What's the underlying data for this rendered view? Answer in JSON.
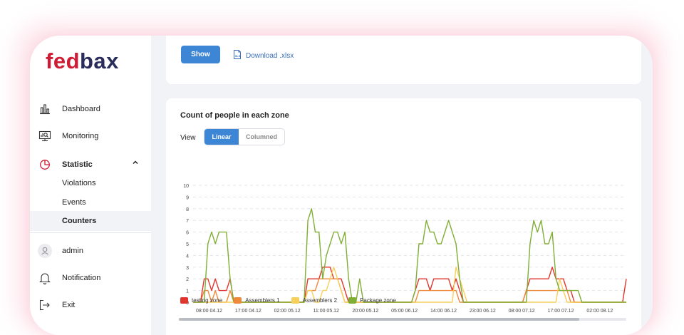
{
  "brand": {
    "part1": "fed",
    "part2": "bax"
  },
  "sidebar": {
    "dashboard": "Dashboard",
    "monitoring": "Monitoring",
    "statistic": "Statistic",
    "violations": "Violations",
    "events": "Events",
    "counters": "Counters",
    "user": "admin",
    "notification": "Notification",
    "exit": "Exit"
  },
  "toolbar": {
    "show_label": "Show",
    "download_label": "Download .xlsx"
  },
  "chart_card": {
    "title": "Count of people in each zone",
    "view_label": "View",
    "view_linear": "Linear",
    "view_columned": "Columned"
  },
  "colors": {
    "accent": "#3d86d6",
    "brand_red": "#cf1b34",
    "brand_navy": "#2a2d5c"
  },
  "chart_data": {
    "type": "line",
    "title": "Count of people in each zone",
    "ylim": [
      0,
      10
    ],
    "y_ticks": [
      "0",
      "1",
      "2",
      "3",
      "4",
      "5",
      "6",
      "7",
      "8",
      "9",
      "10"
    ],
    "x_tick_labels": [
      "08:00 04.12",
      "17:00 04.12",
      "02:00 05.12",
      "11:00 05.12",
      "20:00 05.12",
      "05:00 06.12",
      "14:00 06.12",
      "23:00 06.12",
      "08:00 07.12",
      "17:00 07.12",
      "02:00 08.12"
    ],
    "grid": true,
    "legend_position": "bottom",
    "series": [
      {
        "name": "testing zone",
        "color": "#e0342c",
        "values": [
          0,
          0,
          0,
          2,
          2,
          1,
          2,
          1,
          1,
          1,
          2,
          0,
          0,
          0,
          0,
          0,
          0,
          0,
          0,
          0,
          0,
          0,
          0,
          0,
          0,
          0,
          0,
          0,
          0,
          0,
          0,
          2,
          2,
          2,
          2,
          3,
          3,
          3,
          2,
          2,
          2,
          1,
          0,
          0,
          0,
          0,
          0,
          0,
          0,
          0,
          0,
          0,
          0,
          0,
          0,
          0,
          0,
          0,
          0,
          0,
          1,
          2,
          2,
          2,
          1,
          2,
          2,
          2,
          2,
          2,
          1,
          2,
          1,
          0,
          0,
          0,
          0,
          0,
          0,
          0,
          0,
          0,
          0,
          0,
          0,
          0,
          0,
          0,
          0,
          0,
          1,
          2,
          2,
          2,
          2,
          2,
          2,
          3,
          2,
          2,
          2,
          1,
          1,
          0,
          0,
          0,
          0,
          0,
          0,
          0,
          0,
          0,
          0,
          0,
          0,
          0,
          0,
          2
        ]
      },
      {
        "name": "Assemblers 1",
        "color": "#f0883a",
        "values": [
          0,
          0,
          0,
          1,
          1,
          0,
          1,
          0,
          0,
          0,
          1,
          0,
          0,
          0,
          0,
          0,
          0,
          0,
          0,
          0,
          0,
          0,
          0,
          0,
          0,
          0,
          0,
          0,
          0,
          0,
          0,
          1,
          1,
          1,
          2,
          2,
          2,
          2,
          2,
          2,
          1,
          0,
          0,
          0,
          0,
          0,
          0,
          0,
          0,
          0,
          0,
          0,
          0,
          0,
          0,
          0,
          0,
          0,
          0,
          0,
          0,
          1,
          1,
          1,
          1,
          1,
          1,
          1,
          1,
          1,
          1,
          1,
          0,
          0,
          0,
          0,
          0,
          0,
          0,
          0,
          0,
          0,
          0,
          0,
          0,
          0,
          0,
          0,
          0,
          0,
          1,
          1,
          1,
          1,
          1,
          1,
          1,
          1,
          1,
          1,
          1,
          1,
          0,
          0,
          0,
          0,
          0,
          0,
          0,
          0,
          0,
          0,
          0,
          0,
          0,
          0,
          0,
          0
        ]
      },
      {
        "name": "Assemblers 2",
        "color": "#f7cf5a",
        "values": [
          0,
          0,
          0,
          0,
          0,
          0,
          0,
          0,
          0,
          0,
          0,
          0,
          0,
          0,
          0,
          0,
          0,
          0,
          0,
          0,
          0,
          0,
          0,
          0,
          0,
          0,
          0,
          0,
          0,
          0,
          0,
          1,
          1,
          0,
          0,
          1,
          1,
          2,
          3,
          2,
          1,
          0,
          0,
          0,
          0,
          0,
          0,
          0,
          0,
          0,
          0,
          0,
          0,
          0,
          0,
          0,
          0,
          0,
          0,
          0,
          0,
          0,
          0,
          0,
          0,
          0,
          0,
          0,
          0,
          0,
          0,
          3,
          2,
          1,
          0,
          0,
          0,
          0,
          0,
          0,
          0,
          0,
          0,
          0,
          0,
          0,
          0,
          0,
          0,
          0,
          0,
          0,
          0,
          0,
          0,
          0,
          0,
          0,
          0,
          2,
          1,
          0,
          0,
          0,
          0,
          0,
          0,
          0,
          0,
          0,
          0,
          0,
          0,
          0,
          0,
          0,
          0,
          0
        ]
      },
      {
        "name": "Package zone",
        "color": "#7fae35",
        "values": [
          0,
          0,
          0,
          0,
          5,
          6,
          5,
          6,
          6,
          6,
          2,
          0,
          0,
          0,
          0,
          0,
          0,
          0,
          0,
          0,
          0,
          0,
          0,
          0,
          0,
          0,
          0,
          0,
          0,
          0,
          0,
          7,
          8,
          6,
          6,
          2,
          4,
          5,
          6,
          6,
          5,
          6,
          2,
          0,
          0,
          2,
          0,
          0,
          0,
          0,
          0,
          0,
          0,
          0,
          0,
          0,
          0,
          0,
          0,
          0,
          1,
          5,
          5,
          7,
          6,
          6,
          5,
          5,
          6,
          7,
          6,
          5,
          2,
          0,
          0,
          0,
          0,
          0,
          0,
          0,
          0,
          0,
          0,
          0,
          0,
          0,
          0,
          0,
          0,
          0,
          0,
          5,
          7,
          6,
          7,
          5,
          5,
          6,
          2,
          1,
          1,
          1,
          1,
          1,
          1,
          0,
          0,
          0,
          0,
          0,
          0,
          0,
          0,
          0,
          0,
          0,
          0,
          0
        ]
      }
    ]
  }
}
